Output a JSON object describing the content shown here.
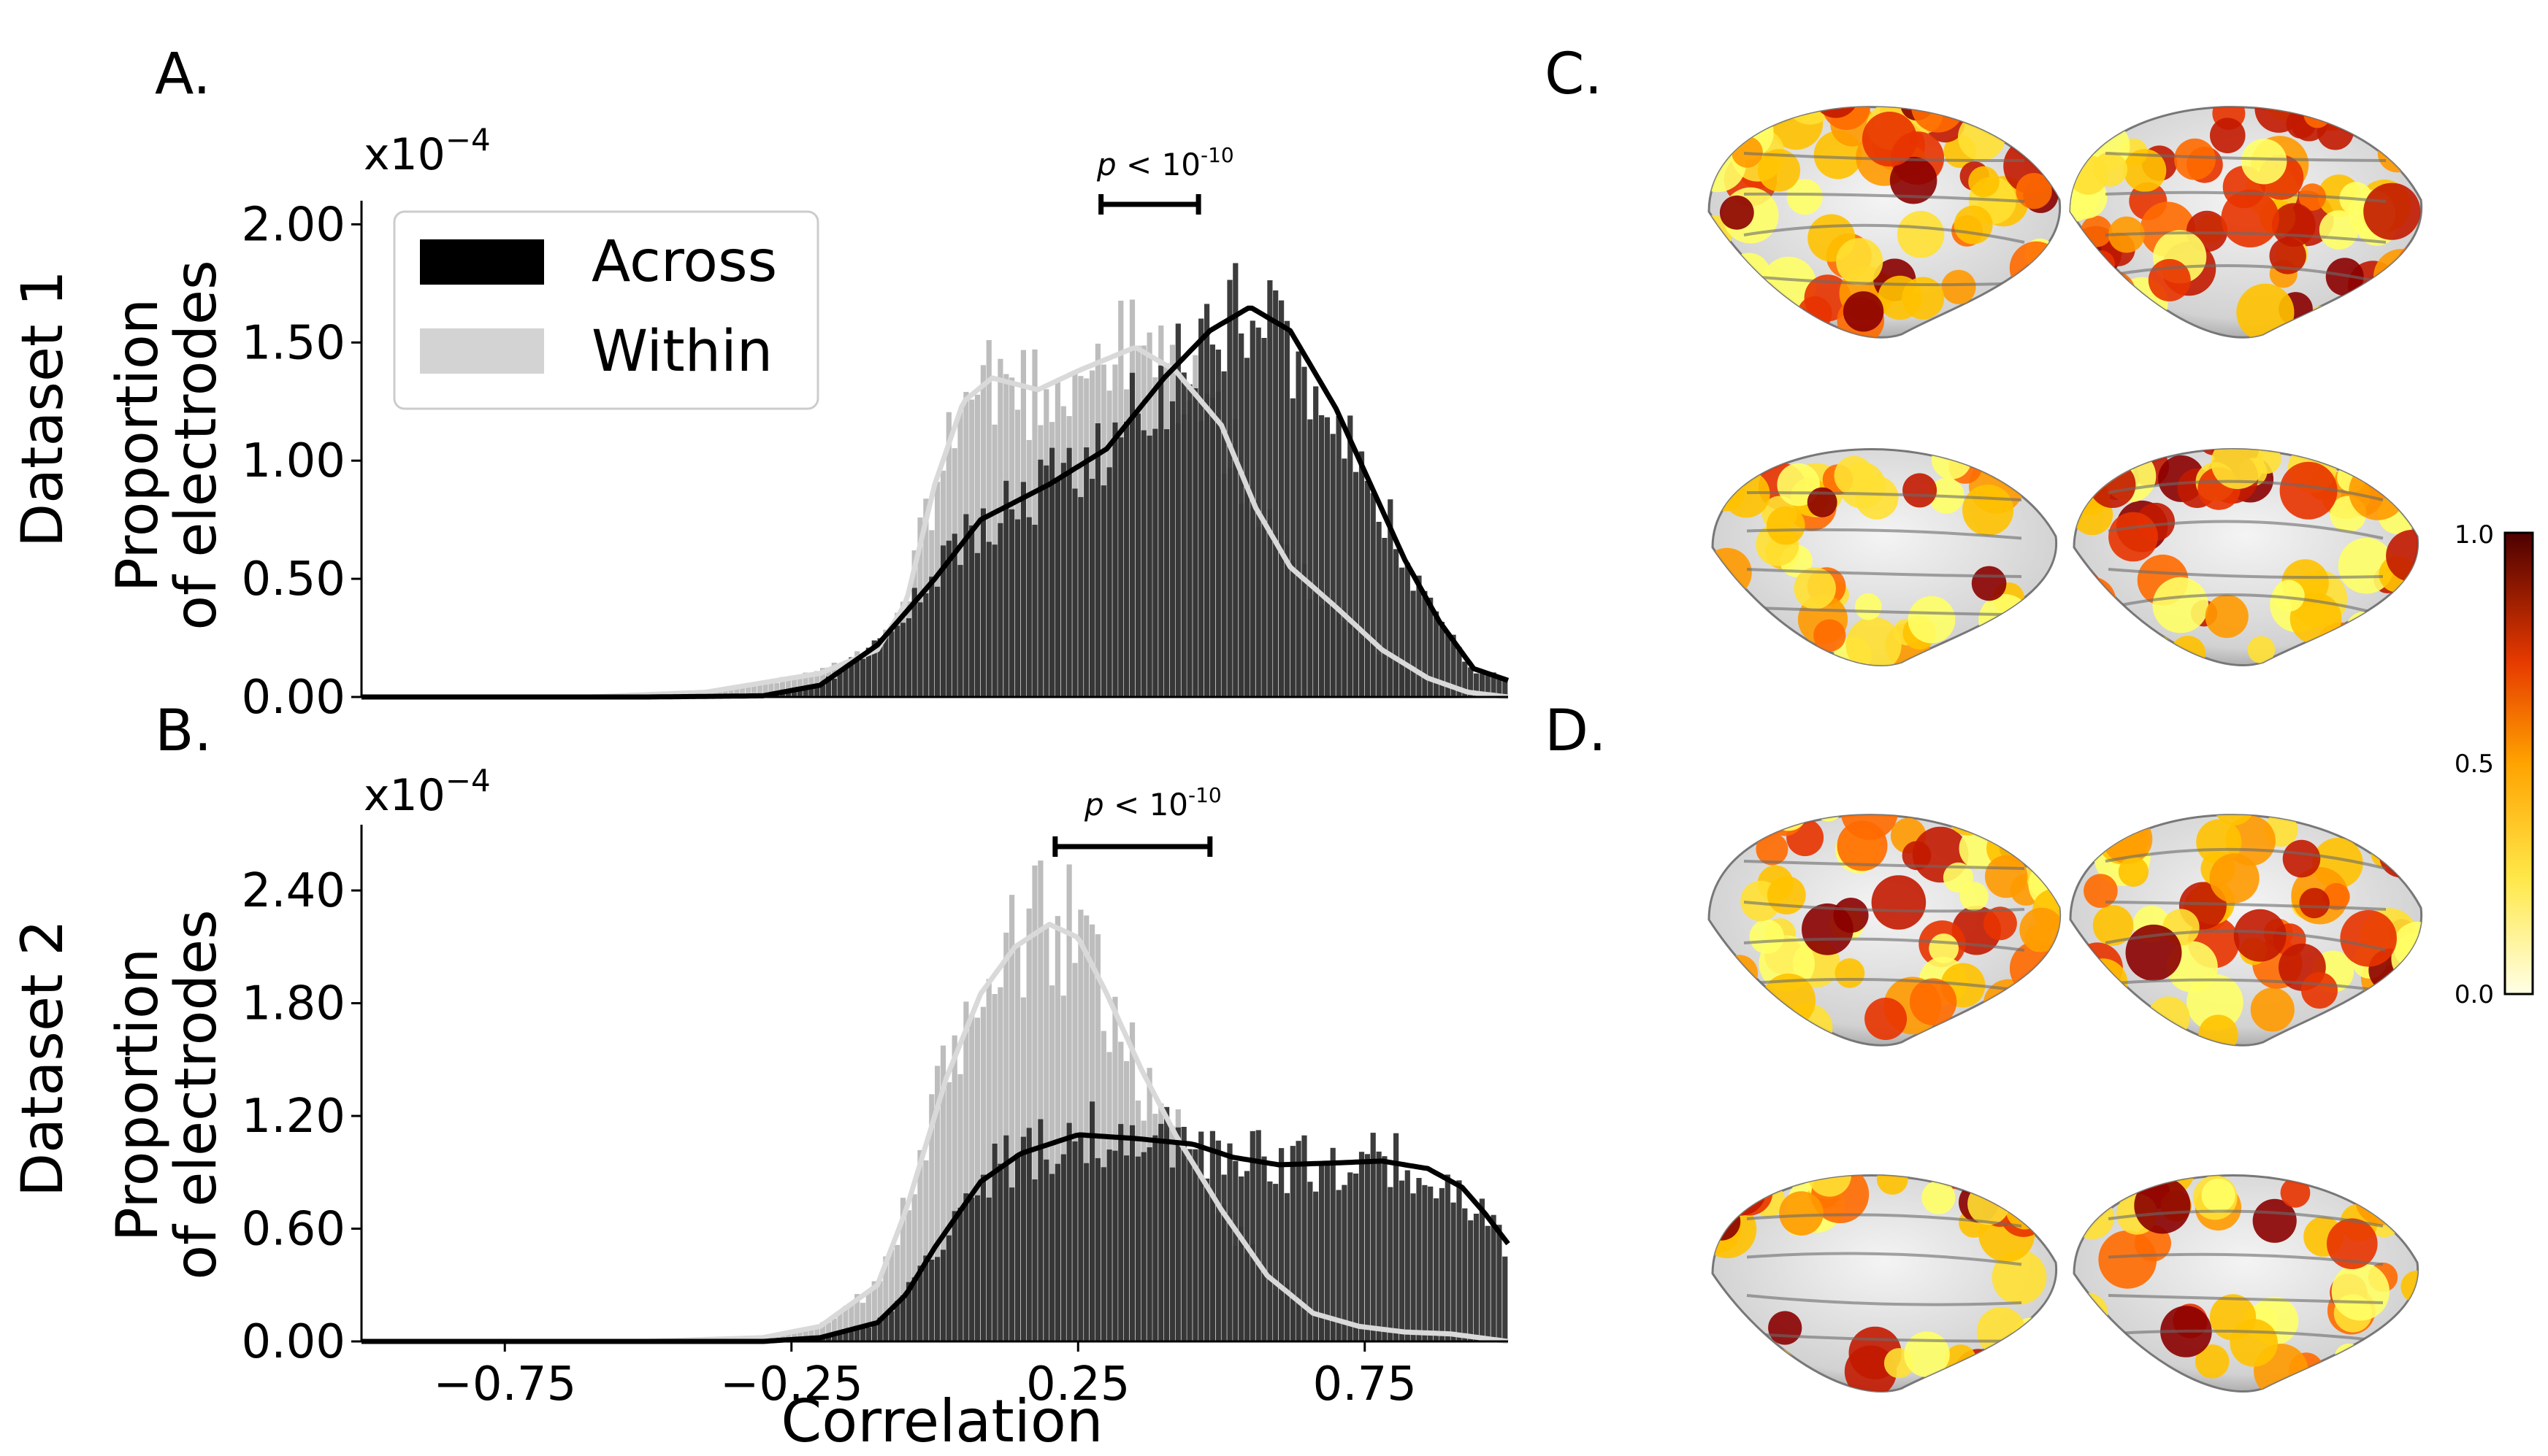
{
  "panel_labels": {
    "a": "A.",
    "b": "B.",
    "c": "C.",
    "d": "D."
  },
  "row_labels": {
    "dataset1": "Dataset 1",
    "dataset2": "Dataset 2"
  },
  "ylabel_line1": "Proportion",
  "ylabel_line2": "of electrodes",
  "xlabel": "Correlation",
  "sig_text": "p < 10",
  "sig_p": "p",
  "sig_rest": " < 10",
  "sig_exp": "-10",
  "legend": {
    "across": "Across",
    "within": "Within"
  },
  "colors": {
    "across": "#2b2b2b",
    "within": "#bdbdbd",
    "across_line": "#000000",
    "within_line": "#d9d9d9"
  },
  "colorbar": {
    "max": "1.0",
    "mid": "0.5",
    "min": "0.0"
  },
  "chart_data": [
    {
      "type": "bar",
      "name": "A",
      "scale_label": "x10",
      "scale_exp": "−4",
      "xlim": [
        -1.0,
        1.0
      ],
      "ylim": [
        0,
        2.1
      ],
      "yticks": [
        "0.00",
        "0.50",
        "1.00",
        "1.50",
        "2.00"
      ],
      "ytick_values": [
        0,
        0.5,
        1.0,
        1.5,
        2.0
      ],
      "xticks": [],
      "significance_bar": [
        0.29,
        0.46
      ],
      "series": [
        {
          "name": "Within",
          "kde": [
            [
              -1.0,
              0
            ],
            [
              -0.6,
              0.0
            ],
            [
              -0.4,
              0.02
            ],
            [
              -0.3,
              0.06
            ],
            [
              -0.2,
              0.1
            ],
            [
              -0.1,
              0.2
            ],
            [
              -0.05,
              0.4
            ],
            [
              0.0,
              0.9
            ],
            [
              0.05,
              1.25
            ],
            [
              0.1,
              1.35
            ],
            [
              0.18,
              1.3
            ],
            [
              0.25,
              1.38
            ],
            [
              0.35,
              1.48
            ],
            [
              0.42,
              1.38
            ],
            [
              0.5,
              1.15
            ],
            [
              0.56,
              0.8
            ],
            [
              0.62,
              0.55
            ],
            [
              0.7,
              0.38
            ],
            [
              0.78,
              0.2
            ],
            [
              0.86,
              0.08
            ],
            [
              0.93,
              0.02
            ],
            [
              1.0,
              0
            ]
          ]
        },
        {
          "name": "Across",
          "kde": [
            [
              -1.0,
              0
            ],
            [
              -0.5,
              0.0
            ],
            [
              -0.3,
              0.005
            ],
            [
              -0.2,
              0.05
            ],
            [
              -0.1,
              0.22
            ],
            [
              0.0,
              0.5
            ],
            [
              0.08,
              0.75
            ],
            [
              0.2,
              0.9
            ],
            [
              0.3,
              1.05
            ],
            [
              0.4,
              1.35
            ],
            [
              0.48,
              1.55
            ],
            [
              0.55,
              1.65
            ],
            [
              0.62,
              1.55
            ],
            [
              0.7,
              1.22
            ],
            [
              0.76,
              0.9
            ],
            [
              0.82,
              0.58
            ],
            [
              0.88,
              0.32
            ],
            [
              0.94,
              0.12
            ],
            [
              1.0,
              0.07
            ]
          ]
        }
      ]
    },
    {
      "type": "bar",
      "name": "B",
      "scale_label": "x10",
      "scale_exp": "−4",
      "xlim": [
        -1.0,
        1.0
      ],
      "ylim": [
        0,
        2.75
      ],
      "yticks": [
        "0.00",
        "0.60",
        "1.20",
        "1.80",
        "2.40"
      ],
      "ytick_values": [
        0,
        0.6,
        1.2,
        1.8,
        2.4
      ],
      "xticks": [
        "−0.75",
        "−0.25",
        "0.25",
        "0.75"
      ],
      "xtick_values": [
        -0.75,
        -0.25,
        0.25,
        0.75
      ],
      "significance_bar": [
        0.21,
        0.48
      ],
      "series": [
        {
          "name": "Within",
          "kde": [
            [
              -1.0,
              0
            ],
            [
              -0.5,
              0.0
            ],
            [
              -0.3,
              0.02
            ],
            [
              -0.2,
              0.08
            ],
            [
              -0.1,
              0.3
            ],
            [
              -0.05,
              0.7
            ],
            [
              0.02,
              1.4
            ],
            [
              0.08,
              1.85
            ],
            [
              0.14,
              2.1
            ],
            [
              0.2,
              2.22
            ],
            [
              0.25,
              2.15
            ],
            [
              0.3,
              1.85
            ],
            [
              0.36,
              1.45
            ],
            [
              0.42,
              1.1
            ],
            [
              0.5,
              0.7
            ],
            [
              0.58,
              0.35
            ],
            [
              0.66,
              0.15
            ],
            [
              0.74,
              0.08
            ],
            [
              0.82,
              0.05
            ],
            [
              0.9,
              0.04
            ],
            [
              1.0,
              0.0
            ]
          ]
        },
        {
          "name": "Across",
          "kde": [
            [
              -1.0,
              0
            ],
            [
              -0.5,
              0.0
            ],
            [
              -0.3,
              0.0
            ],
            [
              -0.2,
              0.02
            ],
            [
              -0.1,
              0.1
            ],
            [
              -0.05,
              0.25
            ],
            [
              0.0,
              0.5
            ],
            [
              0.08,
              0.85
            ],
            [
              0.15,
              1.0
            ],
            [
              0.25,
              1.1
            ],
            [
              0.35,
              1.08
            ],
            [
              0.45,
              1.05
            ],
            [
              0.52,
              0.98
            ],
            [
              0.6,
              0.94
            ],
            [
              0.7,
              0.95
            ],
            [
              0.78,
              0.96
            ],
            [
              0.86,
              0.92
            ],
            [
              0.92,
              0.82
            ],
            [
              0.96,
              0.68
            ],
            [
              1.0,
              0.52
            ]
          ]
        }
      ]
    },
    {
      "type": "heatmap",
      "name": "colorbar",
      "range": [
        0.0,
        1.0
      ],
      "ticks": [
        "0.0",
        "0.5",
        "1.0"
      ]
    }
  ]
}
